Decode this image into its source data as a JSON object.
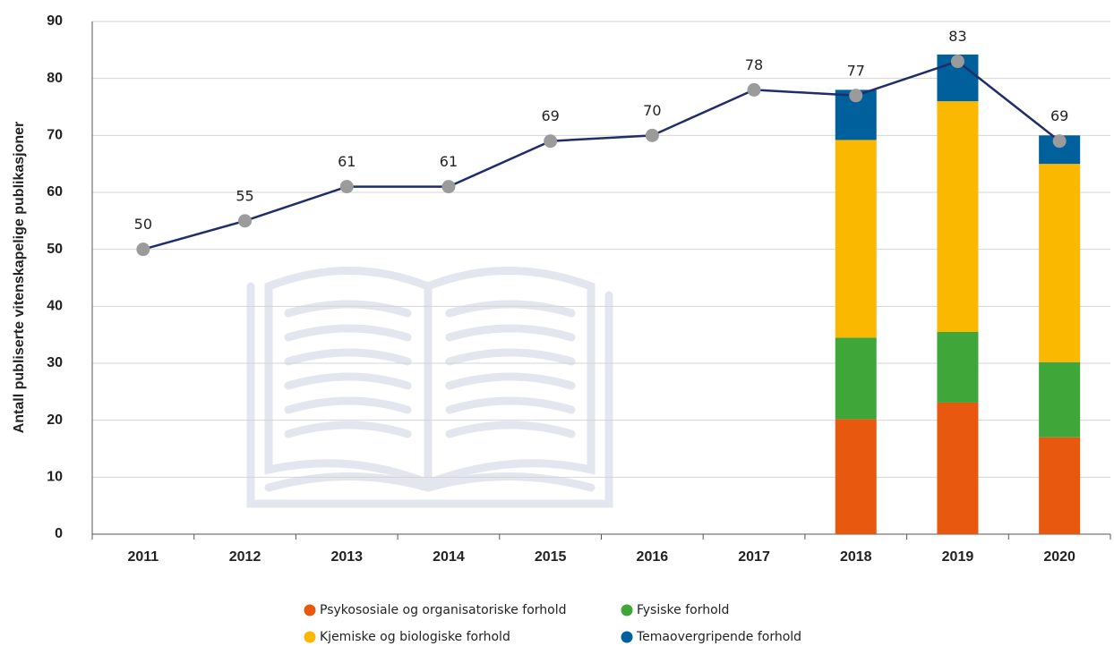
{
  "chart_data": {
    "type": "combo",
    "y_label": "Antall publiserte vitenskapelige publikasjoner",
    "categories": [
      "2011",
      "2012",
      "2013",
      "2014",
      "2015",
      "2016",
      "2017",
      "2018",
      "2019",
      "2020"
    ],
    "ylim": [
      0,
      90
    ],
    "yticks": [
      0,
      10,
      20,
      30,
      40,
      50,
      60,
      70,
      80,
      90
    ],
    "grid": true,
    "series": [
      {
        "type": "bar",
        "name": "Psykososiale og organisatoriske forhold",
        "color": "#e8580f",
        "values": [
          null,
          null,
          null,
          null,
          null,
          null,
          null,
          20.2,
          23.1,
          17
        ]
      },
      {
        "type": "bar",
        "name": "Fysiske forhold",
        "color": "#3fa63a",
        "values": [
          null,
          null,
          null,
          null,
          null,
          null,
          null,
          14.3,
          12.4,
          13.2
        ]
      },
      {
        "type": "bar",
        "name": "Kjemiske og biologiske forhold",
        "color": "#fab800",
        "values": [
          null,
          null,
          null,
          null,
          null,
          null,
          null,
          34.7,
          40.5,
          34.8
        ]
      },
      {
        "type": "bar",
        "name": "Temaovergripende forhold",
        "color": "#00609c",
        "values": [
          null,
          null,
          null,
          null,
          null,
          null,
          null,
          8.8,
          8.2,
          5
        ]
      },
      {
        "type": "line",
        "color": "#1f2d6b",
        "marker_color": "#9b9b9b",
        "values": [
          50,
          55,
          61,
          61,
          69,
          70,
          78,
          77,
          83,
          69
        ]
      }
    ]
  }
}
